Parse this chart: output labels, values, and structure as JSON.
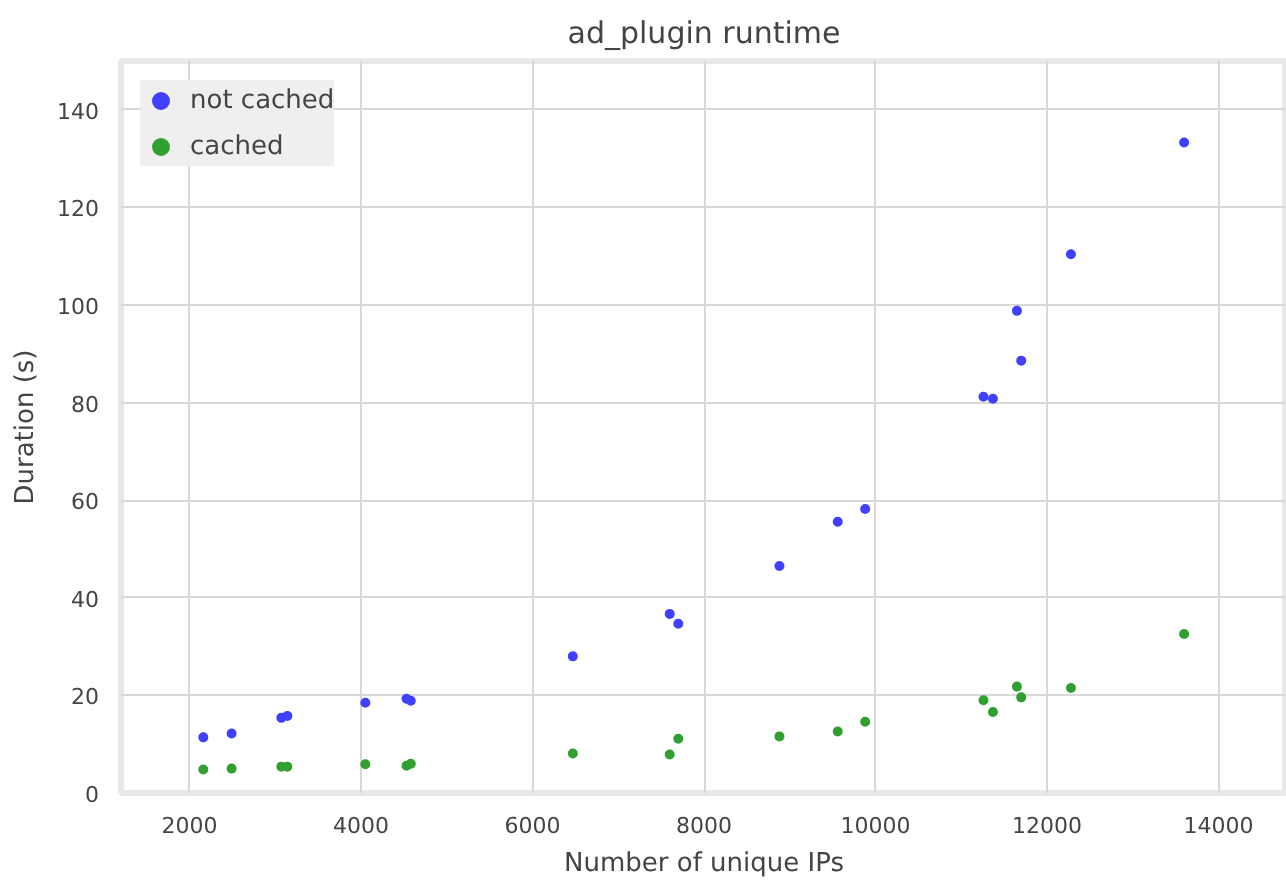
{
  "chart_data": {
    "type": "scatter",
    "title": "ad_plugin runtime",
    "xlabel": "Number of unique IPs",
    "ylabel": "Duration (s)",
    "xlim": [
      1200,
      14800
    ],
    "ylim": [
      0,
      150
    ],
    "xticks": [
      2000,
      4000,
      6000,
      8000,
      10000,
      12000,
      14000
    ],
    "yticks": [
      0,
      20,
      40,
      60,
      80,
      100,
      120,
      140
    ],
    "grid": true,
    "legend": "top left",
    "marker": "circle",
    "series": [
      {
        "name": "not cached",
        "color": "#4040ff",
        "x": [
          2160,
          2490,
          3070,
          3140,
          4050,
          4530,
          4580,
          6470,
          7600,
          7700,
          8880,
          9560,
          9880,
          11260,
          11370,
          11650,
          11700,
          12280,
          13600
        ],
        "values": [
          11.4,
          12.2,
          15.4,
          15.8,
          18.5,
          19.3,
          18.9,
          28,
          36.7,
          34.7,
          46.5,
          55.6,
          58.2,
          81.2,
          80.8,
          98.8,
          88.6,
          110.4,
          133.3
        ]
      },
      {
        "name": "cached",
        "color": "#30a030",
        "x": [
          2160,
          2490,
          3070,
          3140,
          4050,
          4530,
          4580,
          6470,
          7600,
          7700,
          8880,
          9560,
          9880,
          11260,
          11370,
          11650,
          11700,
          12280,
          13600
        ],
        "values": [
          4.8,
          5.0,
          5.4,
          5.4,
          5.9,
          5.6,
          6.0,
          8.1,
          7.9,
          11.1,
          11.6,
          12.6,
          14.6,
          19.0,
          16.6,
          21.8,
          19.6,
          21.5,
          32.6
        ]
      }
    ]
  }
}
